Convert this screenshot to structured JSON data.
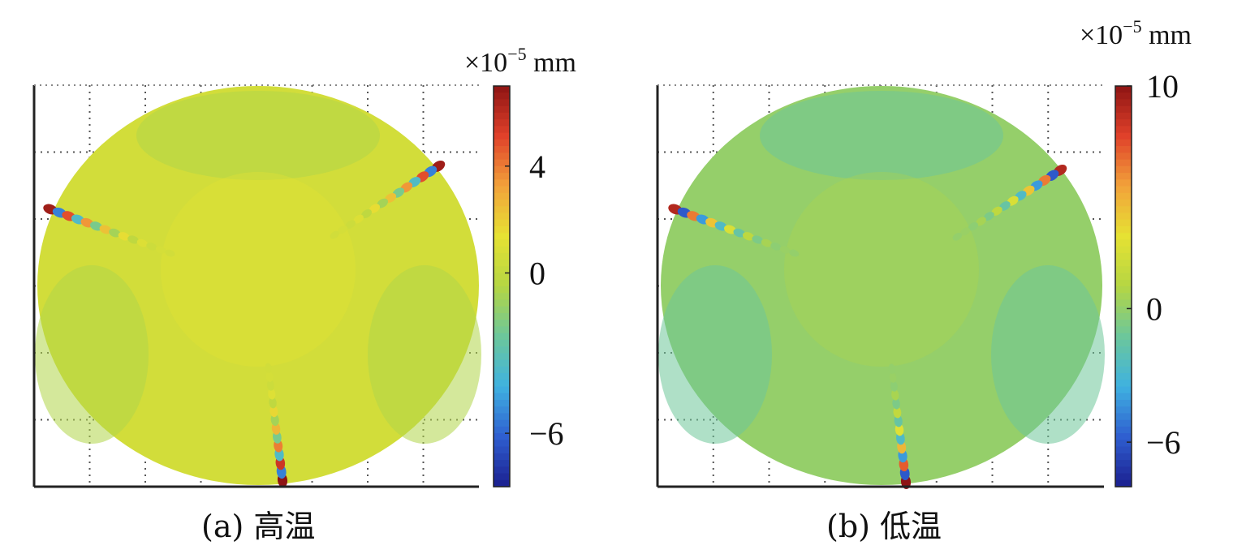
{
  "chart_data": [
    {
      "type": "heatmap",
      "panel_label": "(a) 高温",
      "colorbar_unit": {
        "prefix": "×10",
        "exponent": "−5",
        "suffix": " mm"
      },
      "colorbar_ticks": [
        "4",
        "0",
        "−6"
      ],
      "colorbar_tick_values": [
        4,
        0,
        -6
      ],
      "colorbar_range": [
        -8,
        7
      ],
      "background_value": 0.6,
      "colormap": [
        "#1b1f8f",
        "#2f5fd0",
        "#3fb2e0",
        "#6cc79b",
        "#b5d643",
        "#e6e233",
        "#f2a23a",
        "#e0412a",
        "#8e1414"
      ],
      "grid": true,
      "hotspot_bands": [
        {
          "from": "upper-left edge",
          "to": "center",
          "min": -7,
          "max": 6
        },
        {
          "from": "upper-right edge",
          "to": "center",
          "min": -7,
          "max": 6
        },
        {
          "from": "bottom edge",
          "to": "center",
          "min": -7,
          "max": 7
        }
      ]
    },
    {
      "type": "heatmap",
      "panel_label": "(b) 低温",
      "colorbar_unit": {
        "prefix": "×10",
        "exponent": "−5",
        "suffix": " mm"
      },
      "colorbar_ticks": [
        "10",
        "0",
        "−6"
      ],
      "colorbar_tick_values": [
        10,
        0,
        -6
      ],
      "colorbar_range": [
        -8,
        10
      ],
      "background_value": 0,
      "colormap": [
        "#1b1f8f",
        "#2f5fd0",
        "#3fb2e0",
        "#6cc79b",
        "#b5d643",
        "#e6e233",
        "#f2a23a",
        "#e0412a",
        "#8e1414"
      ],
      "grid": true,
      "hotspot_bands": [
        {
          "from": "upper-left edge",
          "to": "center",
          "min": -7,
          "max": 9
        },
        {
          "from": "upper-right edge",
          "to": "center",
          "min": -7,
          "max": 9
        },
        {
          "from": "bottom edge",
          "to": "center",
          "min": -7,
          "max": 10
        }
      ]
    }
  ]
}
